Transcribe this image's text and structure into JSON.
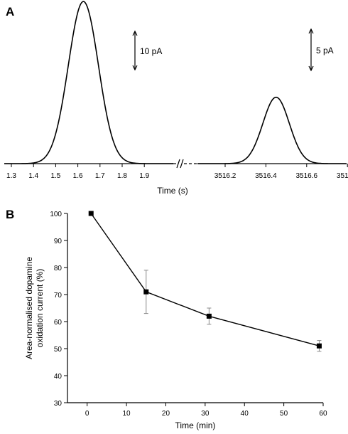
{
  "panels": {
    "a_label": "A",
    "b_label": "B"
  },
  "chart_data": [
    {
      "type": "line",
      "panel": "A",
      "xlabel": "Time (s)",
      "axis_break": true,
      "segments": [
        {
          "xlim": [
            1.25,
            1.95
          ],
          "xticks": [
            1.3,
            1.4,
            1.5,
            1.6,
            1.7,
            1.8,
            1.9
          ],
          "tick_labels": [
            "1.3",
            "1.4",
            "1.5",
            "1.6",
            "1.7",
            "1.8",
            "1.9"
          ],
          "peak": {
            "center": 1.625,
            "sigma": 0.068,
            "height_pa": 21.5
          },
          "scale_bar_label": "10 pA",
          "scale_bar_pa": 10
        },
        {
          "xlim": [
            3516.0,
            3516.9
          ],
          "xticks": [
            3516.2,
            3516.4,
            3516.6,
            3516.8
          ],
          "tick_labels": [
            "3516.2",
            "3516.4",
            "3516.6",
            "3516.8"
          ],
          "peak": {
            "center": 3516.45,
            "sigma": 0.065,
            "height_pa": 8.8
          },
          "scale_bar_label": "5 pA",
          "scale_bar_pa": 5
        }
      ]
    },
    {
      "type": "line",
      "panel": "B",
      "xlabel": "Time (min)",
      "ylabel_lines": [
        "Area-normalised dopamine",
        "oxidation current (%)"
      ],
      "xlim": [
        -5,
        60
      ],
      "ylim": [
        30,
        100
      ],
      "xticks": [
        0,
        10,
        20,
        30,
        40,
        50,
        60
      ],
      "yticks": [
        30,
        40,
        50,
        60,
        70,
        80,
        90,
        100
      ],
      "grid": false,
      "series": [
        {
          "x": [
            1,
            15,
            31,
            59
          ],
          "y": [
            100,
            71,
            62,
            51
          ],
          "error": [
            0,
            8,
            3,
            2
          ]
        }
      ]
    }
  ],
  "colors": {
    "ink": "#000000",
    "error_bar": "#888888"
  }
}
